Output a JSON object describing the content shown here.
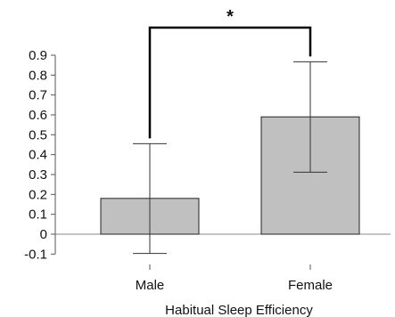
{
  "chart_data": {
    "type": "bar",
    "categories": [
      "Male",
      "Female"
    ],
    "values": [
      0.18,
      0.59
    ],
    "error_upper": [
      0.455,
      0.867
    ],
    "error_lower": [
      -0.097,
      0.312
    ],
    "xlabel": "Habitual Sleep Efficiency",
    "ylabel": "",
    "ylim": [
      -0.1,
      0.9
    ],
    "yticks": [
      "0.9",
      "0.8",
      "0.7",
      "0.6",
      "0.5",
      "0.4",
      "0.3",
      "0.2",
      "0.1",
      "0",
      "-0.1"
    ],
    "ytick_values": [
      0.9,
      0.8,
      0.7,
      0.6,
      0.5,
      0.4,
      0.3,
      0.2,
      0.1,
      0,
      -0.1
    ],
    "significance": {
      "label": "*",
      "between": [
        "Male",
        "Female"
      ]
    },
    "grid": false,
    "bar_color": "#c0c0c0",
    "bar_edge_color": "#222222"
  }
}
